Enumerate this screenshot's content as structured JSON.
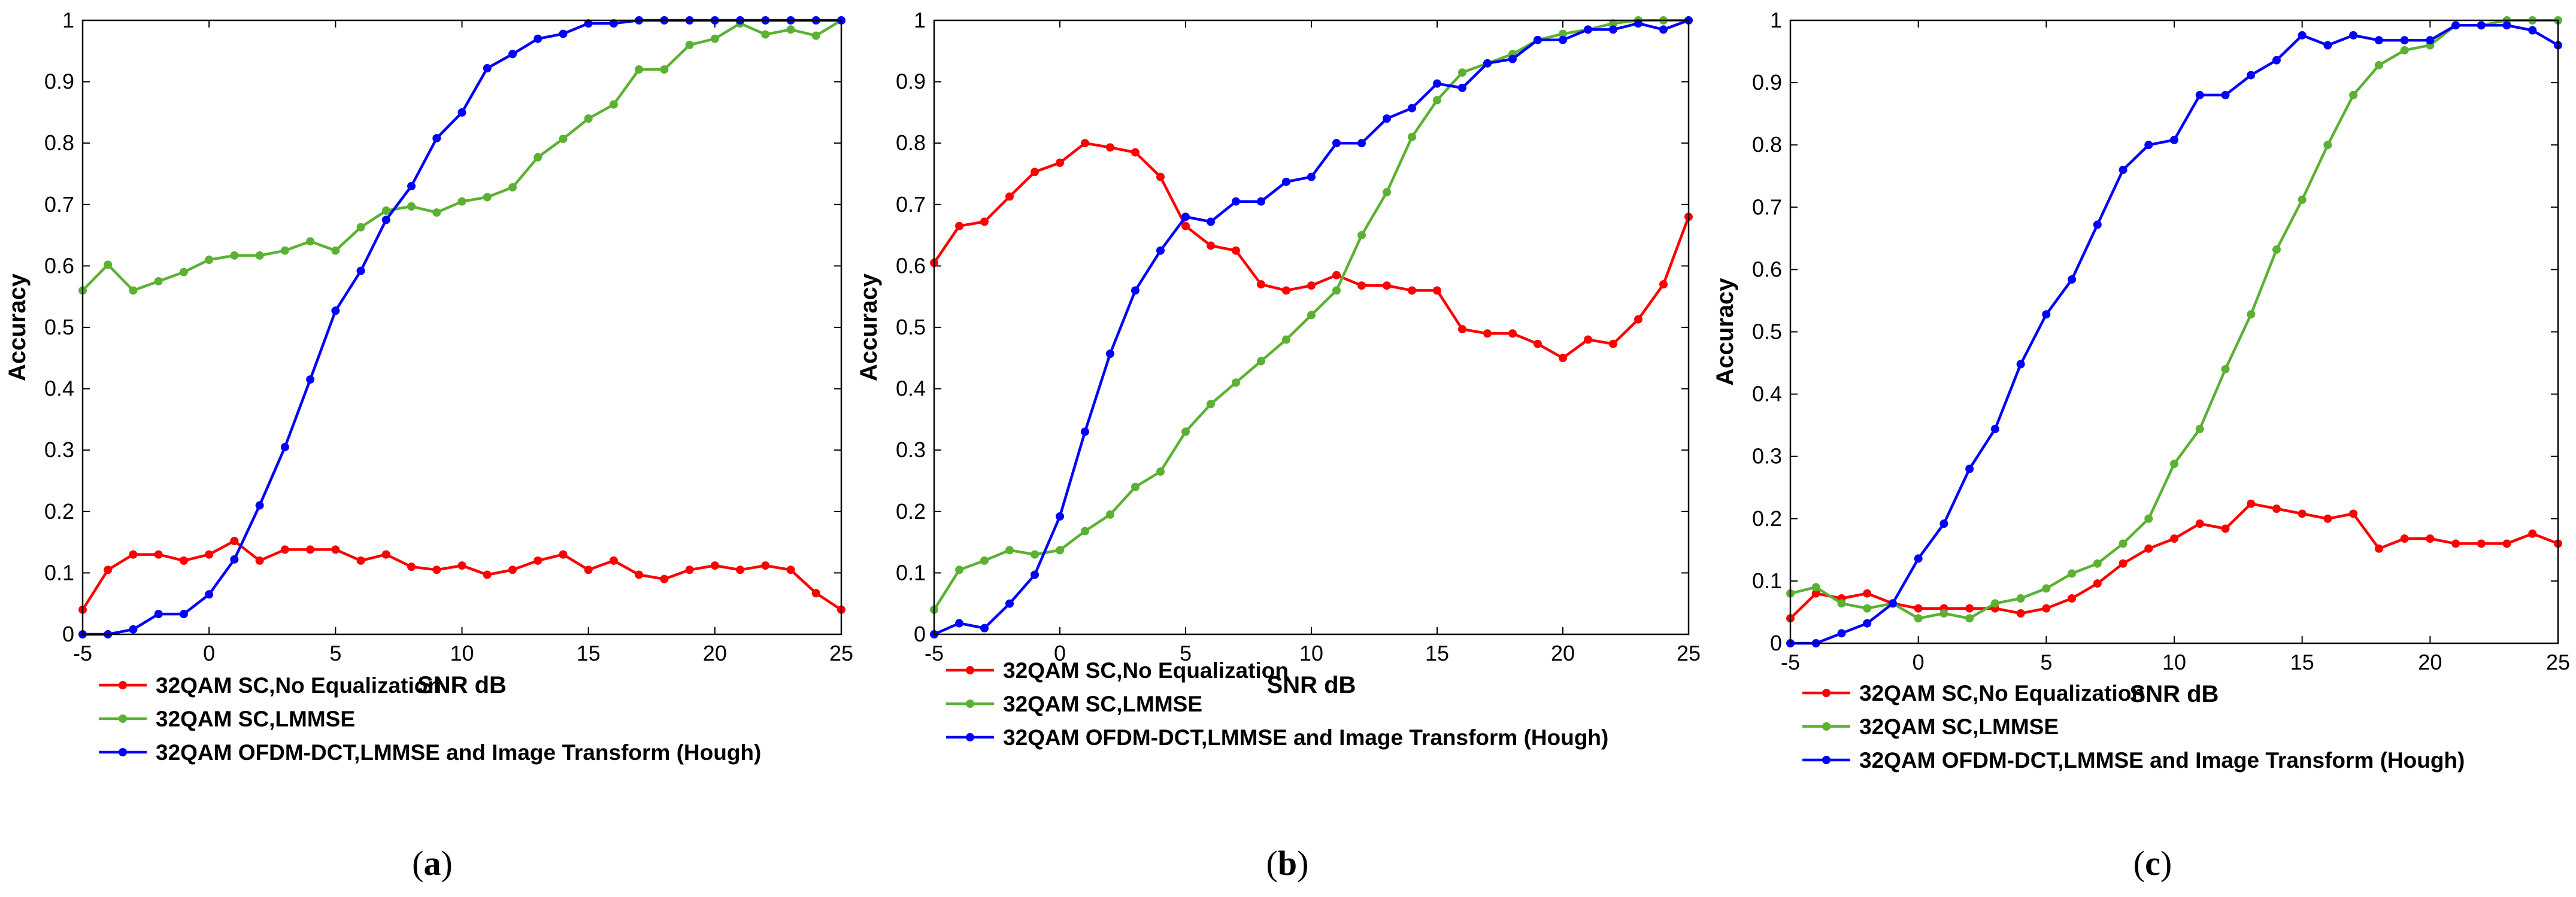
{
  "chart_data": [
    {
      "type": "line",
      "caption_letter": "a",
      "xlabel": "SNR dB",
      "ylabel": "Accuracy",
      "xlim": [
        -5,
        25
      ],
      "ylim": [
        0,
        1
      ],
      "xticks": [
        -5,
        0,
        5,
        10,
        15,
        20,
        25
      ],
      "yticks": [
        0,
        0.1,
        0.2,
        0.3,
        0.4,
        0.5,
        0.6,
        0.7,
        0.8,
        0.9,
        1
      ],
      "ytick_labels": [
        "0",
        "0.1",
        "0.2",
        "0.3",
        "0.4",
        "0.5",
        "0.6",
        "0.7",
        "0.8",
        "0.9",
        "1"
      ],
      "x": [
        -5,
        -4,
        -3,
        -2,
        -1,
        0,
        1,
        2,
        3,
        4,
        5,
        6,
        7,
        8,
        9,
        10,
        11,
        12,
        13,
        14,
        15,
        16,
        17,
        18,
        19,
        20,
        21,
        22,
        23,
        24,
        25
      ],
      "series": [
        {
          "name": "32QAM SC,No Equalization",
          "color": "#ff0000",
          "values": [
            0.04,
            0.105,
            0.13,
            0.13,
            0.12,
            0.13,
            0.152,
            0.12,
            0.138,
            0.138,
            0.138,
            0.12,
            0.13,
            0.11,
            0.105,
            0.112,
            0.097,
            0.105,
            0.12,
            0.13,
            0.105,
            0.12,
            0.097,
            0.09,
            0.105,
            0.112,
            0.105,
            0.112,
            0.105,
            0.067,
            0.04
          ]
        },
        {
          "name": "32QAM SC,LMMSE",
          "color": "#5bb132",
          "values": [
            0.56,
            0.602,
            0.56,
            0.575,
            0.59,
            0.61,
            0.617,
            0.617,
            0.625,
            0.64,
            0.625,
            0.663,
            0.69,
            0.697,
            0.687,
            0.705,
            0.712,
            0.728,
            0.777,
            0.807,
            0.84,
            0.863,
            0.92,
            0.92,
            0.96,
            0.97,
            0.995,
            0.977,
            0.985,
            0.975,
            1.0
          ]
        },
        {
          "name": "32QAM OFDM-DCT,LMMSE and Image Transform (Hough)",
          "color": "#0000ff",
          "values": [
            0.0,
            0.0,
            0.008,
            0.033,
            0.033,
            0.065,
            0.122,
            0.21,
            0.305,
            0.415,
            0.527,
            0.592,
            0.675,
            0.73,
            0.808,
            0.85,
            0.922,
            0.945,
            0.97,
            0.978,
            0.995,
            0.995,
            1.0,
            1.0,
            1.0,
            1.0,
            1.0,
            1.0,
            1.0,
            1.0,
            1.0
          ]
        }
      ]
    },
    {
      "type": "line",
      "caption_letter": "b",
      "xlabel": "SNR dB",
      "ylabel": "Accuracy",
      "xlim": [
        -5,
        25
      ],
      "ylim": [
        0,
        1
      ],
      "xticks": [
        -5,
        0,
        5,
        10,
        15,
        20,
        25
      ],
      "yticks": [
        0,
        0.1,
        0.2,
        0.3,
        0.4,
        0.5,
        0.6,
        0.7,
        0.8,
        0.9,
        1
      ],
      "ytick_labels": [
        "0",
        "0.1",
        "0.2",
        "0.3",
        "0.4",
        "0.5",
        "0.6",
        "0.7",
        "0.8",
        "0.9",
        "1"
      ],
      "x": [
        -5,
        -4,
        -3,
        -2,
        -1,
        0,
        1,
        2,
        3,
        4,
        5,
        6,
        7,
        8,
        9,
        10,
        11,
        12,
        13,
        14,
        15,
        16,
        17,
        18,
        19,
        20,
        21,
        22,
        23,
        24,
        25
      ],
      "series": [
        {
          "name": "32QAM SC,No Equalization",
          "color": "#ff0000",
          "values": [
            0.605,
            0.665,
            0.672,
            0.713,
            0.753,
            0.768,
            0.8,
            0.793,
            0.785,
            0.745,
            0.665,
            0.633,
            0.625,
            0.57,
            0.56,
            0.568,
            0.585,
            0.568,
            0.568,
            0.56,
            0.56,
            0.497,
            0.49,
            0.49,
            0.473,
            0.45,
            0.48,
            0.473,
            0.513,
            0.57,
            0.68
          ]
        },
        {
          "name": "32QAM SC,LMMSE",
          "color": "#5bb132",
          "values": [
            0.04,
            0.105,
            0.12,
            0.137,
            0.13,
            0.137,
            0.168,
            0.195,
            0.24,
            0.265,
            0.33,
            0.375,
            0.41,
            0.445,
            0.48,
            0.52,
            0.56,
            0.65,
            0.72,
            0.81,
            0.87,
            0.915,
            0.93,
            0.945,
            0.968,
            0.978,
            0.985,
            0.995,
            1.0,
            1.0,
            1.0
          ]
        },
        {
          "name": "32QAM OFDM-DCT,LMMSE and Image Transform (Hough)",
          "color": "#0000ff",
          "values": [
            0.0,
            0.018,
            0.01,
            0.05,
            0.097,
            0.192,
            0.33,
            0.457,
            0.56,
            0.625,
            0.68,
            0.672,
            0.705,
            0.705,
            0.737,
            0.745,
            0.8,
            0.8,
            0.84,
            0.857,
            0.897,
            0.89,
            0.93,
            0.937,
            0.968,
            0.968,
            0.985,
            0.985,
            0.995,
            0.985,
            1.0
          ]
        }
      ]
    },
    {
      "type": "line",
      "caption_letter": "c",
      "xlabel": "SNR dB",
      "ylabel": "Accuracy",
      "xlim": [
        -5,
        25
      ],
      "ylim": [
        0,
        1
      ],
      "xticks": [
        -5,
        0,
        5,
        10,
        15,
        20,
        25
      ],
      "yticks": [
        0,
        0.1,
        0.2,
        0.3,
        0.4,
        0.5,
        0.6,
        0.7,
        0.8,
        0.9,
        1
      ],
      "ytick_labels": [
        "0",
        "0.1",
        "0.2",
        "0.3",
        "0.4",
        "0.5",
        "0.6",
        "0.7",
        "0.8",
        "0.9",
        "1"
      ],
      "x": [
        -5,
        -4,
        -3,
        -2,
        -1,
        0,
        1,
        2,
        3,
        4,
        5,
        6,
        7,
        8,
        9,
        10,
        11,
        12,
        13,
        14,
        15,
        16,
        17,
        18,
        19,
        20,
        21,
        22,
        23,
        24,
        25
      ],
      "series": [
        {
          "name": "32QAM SC,No Equalization",
          "color": "#ff0000",
          "values": [
            0.04,
            0.08,
            0.072,
            0.08,
            0.064,
            0.056,
            0.056,
            0.056,
            0.056,
            0.048,
            0.056,
            0.072,
            0.096,
            0.128,
            0.152,
            0.168,
            0.192,
            0.184,
            0.224,
            0.216,
            0.208,
            0.2,
            0.208,
            0.152,
            0.168,
            0.168,
            0.16,
            0.16,
            0.16,
            0.176,
            0.16
          ]
        },
        {
          "name": "32QAM SC,LMMSE",
          "color": "#5bb132",
          "values": [
            0.08,
            0.09,
            0.064,
            0.056,
            0.064,
            0.04,
            0.048,
            0.04,
            0.064,
            0.072,
            0.088,
            0.112,
            0.128,
            0.16,
            0.2,
            0.288,
            0.344,
            0.44,
            0.528,
            0.632,
            0.712,
            0.8,
            0.88,
            0.928,
            0.952,
            0.96,
            0.992,
            0.992,
            1.0,
            1.0,
            1.0
          ]
        },
        {
          "name": "32QAM OFDM-DCT,LMMSE and Image Transform (Hough)",
          "color": "#0000ff",
          "values": [
            0.0,
            0.0,
            0.016,
            0.032,
            0.064,
            0.136,
            0.192,
            0.28,
            0.344,
            0.448,
            0.528,
            0.584,
            0.672,
            0.76,
            0.8,
            0.808,
            0.88,
            0.88,
            0.912,
            0.936,
            0.976,
            0.96,
            0.976,
            0.968,
            0.968,
            0.968,
            0.992,
            0.992,
            0.992,
            0.984,
            0.96
          ]
        }
      ]
    }
  ]
}
